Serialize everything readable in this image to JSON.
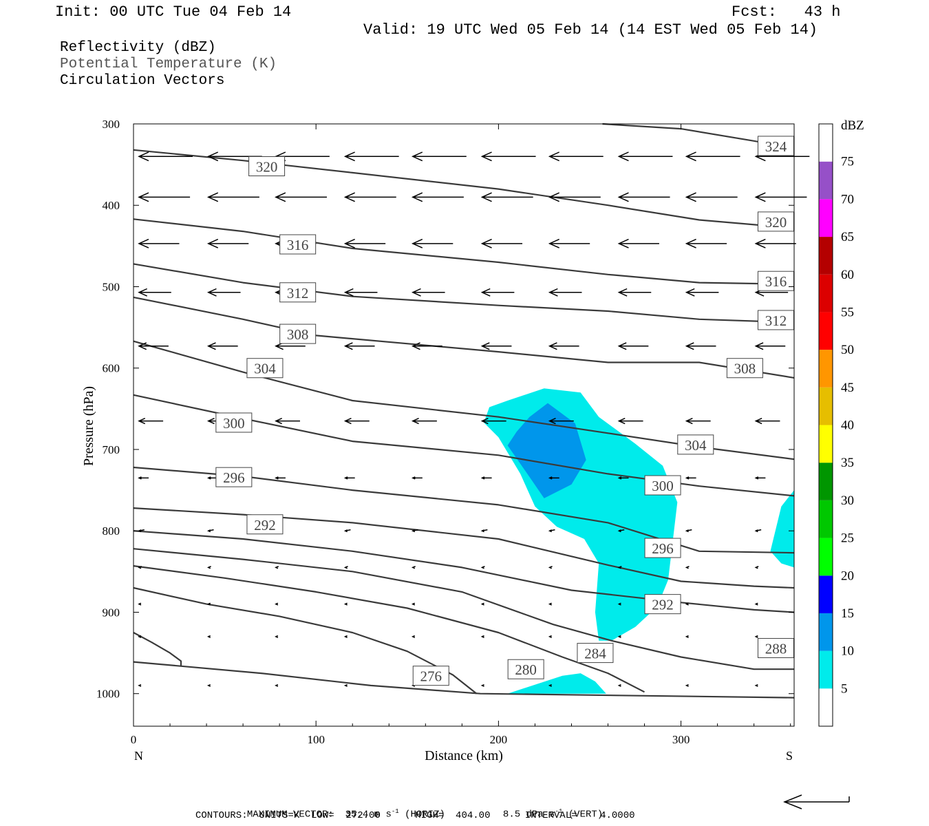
{
  "header": {
    "init": "Init: 00 UTC Tue 04 Feb 14",
    "fcst": "Fcst:   43 h",
    "valid": "Valid: 19 UTC Wed 05 Feb 14 (14 EST Wed 05 Feb 14)"
  },
  "legend_titles": {
    "reflectivity": "Reflectivity (dBZ)",
    "theta": "Potential Temperature (K)",
    "vectors": "Circulation Vectors"
  },
  "footer": {
    "max_vector_label": "MAXIMUM VECTOR:",
    "horiz_value": "35.4 m s",
    "horiz_exp": "-1",
    "horiz_label": " (HORIZ)",
    "vert_value": "8.5 dPa s",
    "vert_exp": "-1",
    "vert_label": " (VERT)",
    "contours": "CONTOURS:  UNITS=K  LOW=  272.00      HIGH=  404.00      INTERVAL=    4.0000"
  },
  "chart_data": {
    "type": "contour",
    "xlabel": "Distance (km)",
    "ylabel": "Pressure (hPa)",
    "xlim": [
      0,
      362
    ],
    "ylim": [
      300,
      1040
    ],
    "x_ticks": [
      0,
      100,
      200,
      300
    ],
    "y_ticks": [
      300,
      400,
      500,
      600,
      700,
      800,
      900,
      1000
    ],
    "end_labels": {
      "left": "N",
      "right": "S"
    },
    "colorbar": {
      "title": "dBZ",
      "levels": [
        5,
        10,
        15,
        20,
        25,
        30,
        35,
        40,
        45,
        50,
        55,
        60,
        65,
        70,
        75
      ],
      "colors": [
        "#ffffff",
        "#00ebeb",
        "#0096eb",
        "#0000ff",
        "#00ff00",
        "#00c800",
        "#009600",
        "#ffff00",
        "#e6be00",
        "#ff9600",
        "#ff0000",
        "#dc0000",
        "#b40000",
        "#ff00ff",
        "#9650c8",
        "#ffffff"
      ]
    },
    "theta_contours": [
      {
        "label": "276",
        "points": [
          [
            0,
            925
          ],
          [
            10,
            937
          ],
          [
            20,
            950
          ],
          [
            26,
            960
          ],
          [
            26,
            966
          ]
        ]
      },
      {
        "label": "276",
        "points": [
          [
            0,
            870
          ],
          [
            40,
            890
          ],
          [
            80,
            905
          ],
          [
            120,
            925
          ],
          [
            150,
            948
          ],
          [
            175,
            977
          ],
          [
            188,
            1000
          ]
        ]
      },
      {
        "label": "280",
        "points": [
          [
            0,
            843
          ],
          [
            50,
            858
          ],
          [
            100,
            875
          ],
          [
            150,
            895
          ],
          [
            200,
            925
          ],
          [
            235,
            955
          ],
          [
            260,
            975
          ],
          [
            280,
            998
          ]
        ]
      },
      {
        "label": "284",
        "points": [
          [
            0,
            822
          ],
          [
            60,
            835
          ],
          [
            120,
            850
          ],
          [
            180,
            875
          ],
          [
            230,
            915
          ],
          [
            262,
            935
          ],
          [
            300,
            955
          ],
          [
            340,
            970
          ],
          [
            362,
            970
          ]
        ]
      },
      {
        "label": "288",
        "points": [
          [
            0,
            800
          ],
          [
            60,
            810
          ],
          [
            120,
            825
          ],
          [
            180,
            845
          ],
          [
            240,
            873
          ],
          [
            300,
            888
          ],
          [
            340,
            897
          ],
          [
            362,
            900
          ]
        ]
      },
      {
        "label": "292",
        "points": [
          [
            0,
            772
          ],
          [
            60,
            780
          ],
          [
            120,
            790
          ],
          [
            200,
            810
          ],
          [
            260,
            842
          ],
          [
            300,
            862
          ],
          [
            340,
            868
          ],
          [
            362,
            870
          ]
        ]
      },
      {
        "label": "296",
        "points": [
          [
            0,
            722
          ],
          [
            60,
            733
          ],
          [
            120,
            750
          ],
          [
            200,
            768
          ],
          [
            260,
            790
          ],
          [
            310,
            825
          ],
          [
            362,
            827
          ]
        ]
      },
      {
        "label": "300",
        "points": [
          [
            0,
            633
          ],
          [
            60,
            662
          ],
          [
            120,
            690
          ],
          [
            200,
            707
          ],
          [
            260,
            730
          ],
          [
            310,
            745
          ],
          [
            362,
            757
          ]
        ]
      },
      {
        "label": "304",
        "points": [
          [
            0,
            567
          ],
          [
            60,
            605
          ],
          [
            120,
            640
          ],
          [
            200,
            660
          ],
          [
            260,
            680
          ],
          [
            310,
            697
          ],
          [
            362,
            712
          ]
        ]
      },
      {
        "label": "308",
        "points": [
          [
            0,
            513
          ],
          [
            60,
            540
          ],
          [
            100,
            560
          ],
          [
            200,
            580
          ],
          [
            260,
            593
          ],
          [
            310,
            593
          ],
          [
            362,
            612
          ]
        ]
      },
      {
        "label": "312",
        "points": [
          [
            0,
            472
          ],
          [
            60,
            495
          ],
          [
            120,
            512
          ],
          [
            200,
            523
          ],
          [
            260,
            530
          ],
          [
            310,
            540
          ],
          [
            362,
            544
          ]
        ]
      },
      {
        "label": "316",
        "points": [
          [
            0,
            417
          ],
          [
            60,
            432
          ],
          [
            120,
            453
          ],
          [
            200,
            470
          ],
          [
            260,
            485
          ],
          [
            310,
            495
          ],
          [
            362,
            497
          ]
        ]
      },
      {
        "label": "320",
        "points": [
          [
            0,
            332
          ],
          [
            60,
            345
          ],
          [
            120,
            360
          ],
          [
            200,
            380
          ],
          [
            260,
            400
          ],
          [
            310,
            418
          ],
          [
            362,
            428
          ]
        ]
      },
      {
        "label": "324",
        "points": [
          [
            257,
            300
          ],
          [
            300,
            306
          ],
          [
            340,
            321
          ],
          [
            362,
            330
          ]
        ]
      },
      {
        "label": "surface",
        "points": [
          [
            0,
            961
          ],
          [
            70,
            975
          ],
          [
            130,
            990
          ],
          [
            190,
            1000
          ],
          [
            362,
            1005
          ]
        ]
      }
    ],
    "contour_labels": [
      {
        "text": "320",
        "x": 73,
        "y": 352
      },
      {
        "text": "324",
        "x": 352,
        "y": 327
      },
      {
        "text": "320",
        "x": 352,
        "y": 420
      },
      {
        "text": "316",
        "x": 90,
        "y": 448
      },
      {
        "text": "316",
        "x": 352,
        "y": 493
      },
      {
        "text": "312",
        "x": 90,
        "y": 507
      },
      {
        "text": "312",
        "x": 352,
        "y": 541
      },
      {
        "text": "308",
        "x": 90,
        "y": 558
      },
      {
        "text": "308",
        "x": 335,
        "y": 600
      },
      {
        "text": "304",
        "x": 72,
        "y": 600
      },
      {
        "text": "304",
        "x": 308,
        "y": 694
      },
      {
        "text": "300",
        "x": 55,
        "y": 667
      },
      {
        "text": "300",
        "x": 290,
        "y": 744
      },
      {
        "text": "296",
        "x": 55,
        "y": 734
      },
      {
        "text": "296",
        "x": 290,
        "y": 821
      },
      {
        "text": "292",
        "x": 72,
        "y": 792
      },
      {
        "text": "292",
        "x": 290,
        "y": 890
      },
      {
        "text": "288",
        "x": 352,
        "y": 944
      },
      {
        "text": "284",
        "x": 253,
        "y": 950
      },
      {
        "text": "280",
        "x": 215,
        "y": 970
      },
      {
        "text": "276",
        "x": 163,
        "y": 978
      }
    ],
    "reflectivity_5": [
      [
        [
          205,
          640
        ],
        [
          225,
          625
        ],
        [
          245,
          630
        ],
        [
          255,
          660
        ],
        [
          275,
          693
        ],
        [
          290,
          720
        ],
        [
          298,
          765
        ],
        [
          293,
          860
        ],
        [
          287,
          893
        ],
        [
          275,
          918
        ],
        [
          262,
          935
        ],
        [
          255,
          935
        ],
        [
          253,
          900
        ],
        [
          255,
          840
        ],
        [
          247,
          810
        ],
        [
          232,
          795
        ],
        [
          220,
          770
        ],
        [
          212,
          730
        ],
        [
          200,
          685
        ],
        [
          192,
          667
        ],
        [
          195,
          648
        ]
      ],
      [
        [
          205,
          1000
        ],
        [
          235,
          978
        ],
        [
          245,
          975
        ],
        [
          253,
          985
        ],
        [
          259,
          1000
        ]
      ],
      [
        [
          362,
          750
        ],
        [
          355,
          770
        ],
        [
          349,
          825
        ],
        [
          355,
          840
        ],
        [
          362,
          845
        ]
      ]
    ],
    "reflectivity_10": [
      [
        [
          217,
          660
        ],
        [
          227,
          643
        ],
        [
          242,
          668
        ],
        [
          248,
          713
        ],
        [
          240,
          743
        ],
        [
          225,
          760
        ],
        [
          218,
          737
        ],
        [
          205,
          695
        ],
        [
          210,
          678
        ]
      ]
    ],
    "vectors": {
      "rows_p": [
        340,
        390,
        447,
        507,
        573,
        665,
        735,
        800,
        845,
        890,
        930,
        990
      ],
      "x_start": [
        0,
        38,
        75,
        113,
        150,
        188,
        225,
        263,
        300,
        338
      ],
      "u": [
        -1,
        -0.95,
        -0.75,
        -0.6,
        -0.55,
        -0.45,
        -0.18,
        -0.1,
        -0.05,
        -0.03,
        -0.02,
        -0.015
      ],
      "w": [
        0,
        0,
        0,
        0,
        0,
        0,
        0,
        0.002,
        0.004,
        0.005,
        0.006,
        0
      ]
    }
  }
}
